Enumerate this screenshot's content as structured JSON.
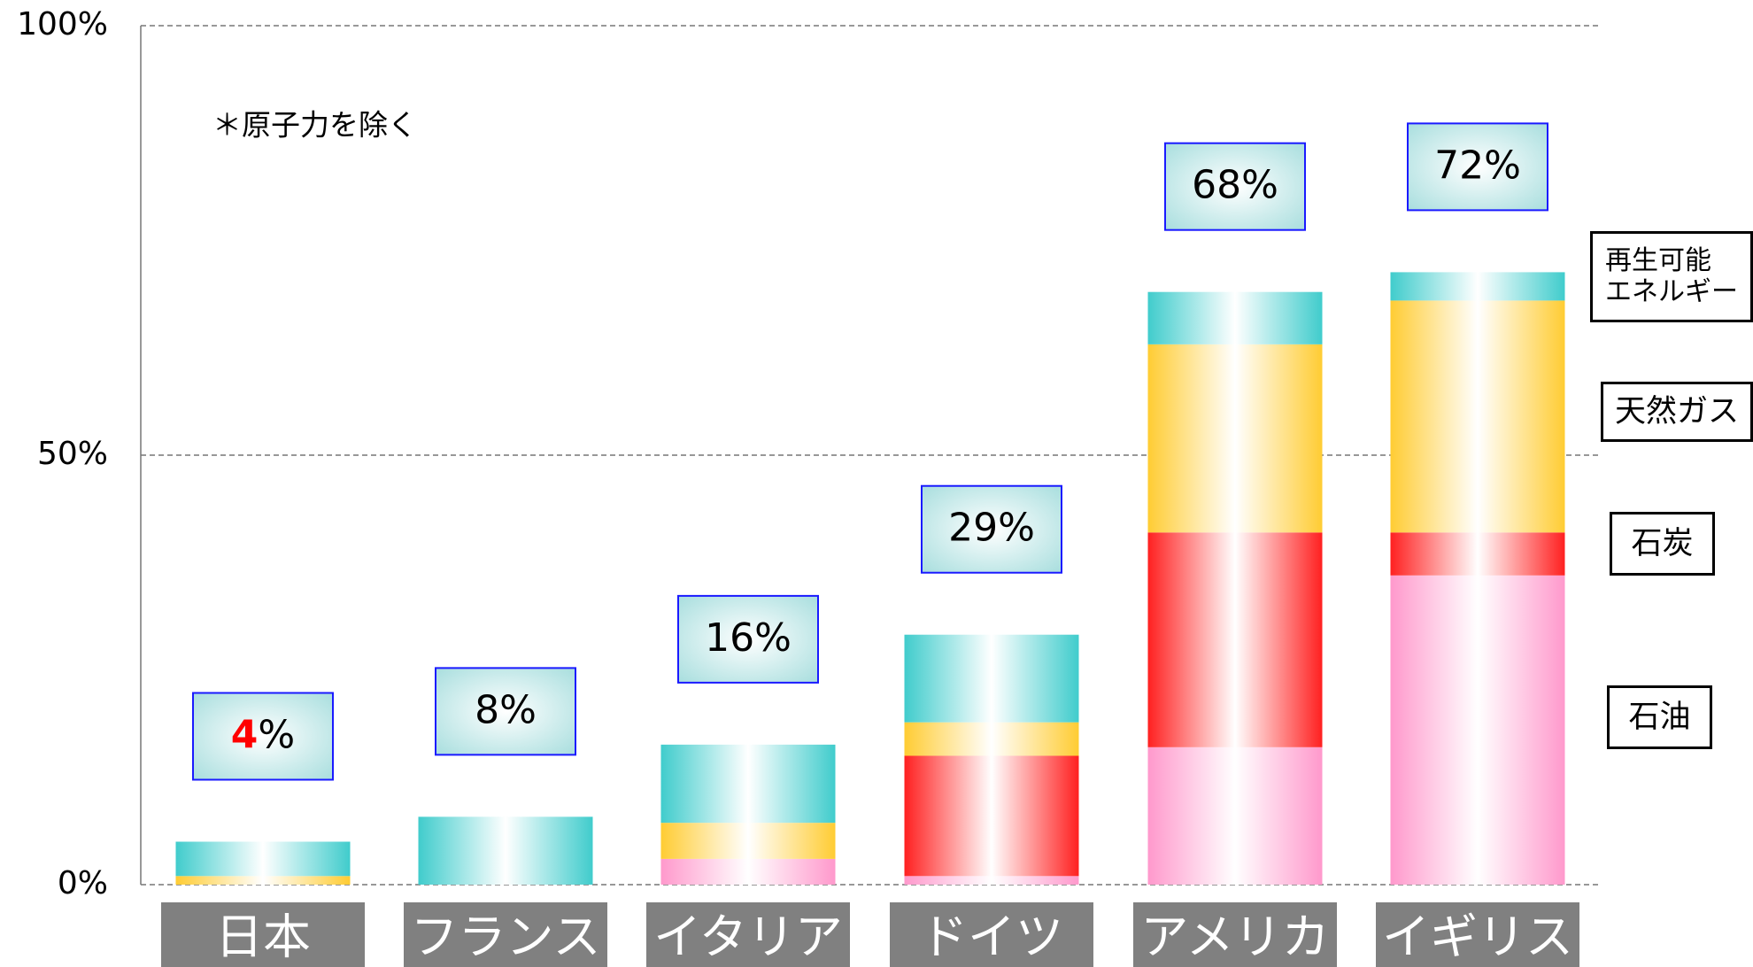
{
  "chart_data": {
    "type": "stacked-bar",
    "note": "＊原子力を除く",
    "categories": [
      "日本",
      "フランス",
      "イタリア",
      "ドイツ",
      "アメリカ",
      "イギリス"
    ],
    "series": [
      {
        "name": "石油",
        "color": "#ff99cc",
        "values": [
          0,
          0,
          3,
          1,
          16,
          36
        ]
      },
      {
        "name": "石炭",
        "color": "#ff2020",
        "values": [
          0,
          0,
          0,
          14,
          25,
          5
        ]
      },
      {
        "name": "天然ガス",
        "color": "#ffcc33",
        "values": [
          1,
          0,
          4.2,
          3.9,
          21.9,
          27
        ]
      },
      {
        "name": "再生可能\nエネルギー",
        "color": "#40cccc",
        "values": [
          4,
          7.9,
          9.1,
          10.2,
          6.1,
          3.3
        ]
      }
    ],
    "totals": [
      4,
      8,
      16,
      29,
      68,
      72
    ],
    "total_unit": "%",
    "total_colors": [
      "#ff0000",
      "#000000",
      "#000000",
      "#000000",
      "#000000",
      "#000000"
    ],
    "ylim": [
      0,
      100
    ],
    "yticks": [
      {
        "value": 0,
        "label": "0%"
      },
      {
        "value": 50,
        "label": "50%"
      },
      {
        "value": 100,
        "label": "100%"
      }
    ],
    "grid": true
  }
}
